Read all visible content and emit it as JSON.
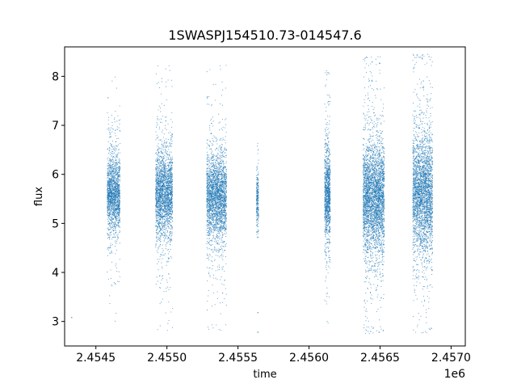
{
  "chart_data": {
    "type": "scatter",
    "title": "1SWASPJ154510.73-014547.6",
    "xlabel": "time",
    "ylabel": "flux",
    "x_offset_label": "1e6",
    "xlim": [
      2454280,
      2457100
    ],
    "ylim": [
      2.5,
      8.6
    ],
    "x_ticks": [
      2454500,
      2455000,
      2455500,
      2456000,
      2456500,
      2457000
    ],
    "x_tick_labels": [
      "2.4545",
      "2.4550",
      "2.4555",
      "2.4560",
      "2.4565",
      "2.4570"
    ],
    "y_ticks": [
      3,
      4,
      5,
      6,
      7,
      8
    ],
    "y_tick_labels": [
      "3",
      "4",
      "5",
      "6",
      "7",
      "8"
    ],
    "grid": false,
    "marker_color": "#1f77b4",
    "clusters": [
      {
        "t_start": 2454580,
        "t_end": 2454670,
        "n": 1700,
        "core_mean": 5.6,
        "core_sd": 0.38,
        "min": 2.85,
        "max": 8.3
      },
      {
        "t_start": 2454920,
        "t_end": 2455040,
        "n": 2300,
        "core_mean": 5.6,
        "core_sd": 0.42,
        "min": 2.8,
        "max": 8.4
      },
      {
        "t_start": 2455280,
        "t_end": 2455420,
        "n": 2600,
        "core_mean": 5.55,
        "core_sd": 0.42,
        "min": 2.8,
        "max": 8.35
      },
      {
        "t_start": 2455630,
        "t_end": 2455645,
        "n": 250,
        "core_mean": 5.5,
        "core_sd": 0.3,
        "min": 4.7,
        "max": 6.65
      },
      {
        "t_start": 2456110,
        "t_end": 2456150,
        "n": 1100,
        "core_mean": 5.6,
        "core_sd": 0.45,
        "min": 2.9,
        "max": 8.15
      },
      {
        "t_start": 2456380,
        "t_end": 2456530,
        "n": 3400,
        "core_mean": 5.5,
        "core_sd": 0.55,
        "min": 2.75,
        "max": 8.4
      },
      {
        "t_start": 2456730,
        "t_end": 2456870,
        "n": 3000,
        "core_mean": 5.6,
        "core_sd": 0.6,
        "min": 2.75,
        "max": 8.45
      }
    ],
    "isolated_points": [
      {
        "x": 2454330,
        "y": 3.08
      },
      {
        "x": 2455640,
        "y": 2.78
      },
      {
        "x": 2455640,
        "y": 3.18
      }
    ]
  }
}
